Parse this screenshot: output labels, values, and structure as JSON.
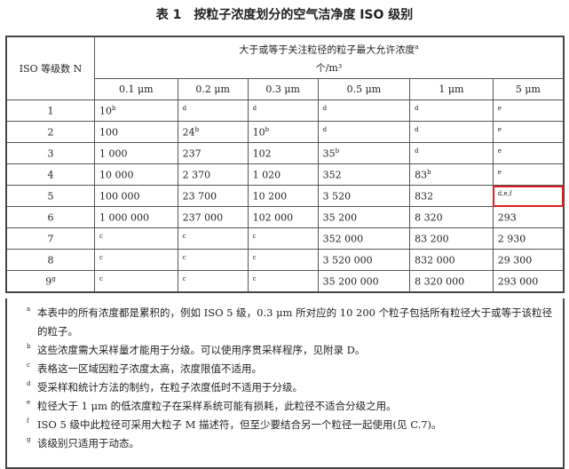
{
  "title": "表 1　按粒子浓度划分的空气洁净度 ISO 级别",
  "header": {
    "class_col": "ISO 等级数 N",
    "concentration": "大于或等于关注粒径的粒子最大允许浓度",
    "concentration_sup": "a",
    "unit": "个/m³",
    "sizes": [
      "0.1 μm",
      "0.2 μm",
      "0.3 μm",
      "0.5 μm",
      "1 μm",
      "5 μm"
    ]
  },
  "rows": [
    {
      "n": "1",
      "ns": "",
      "cells": [
        [
          "10",
          "b"
        ],
        [
          "",
          "d"
        ],
        [
          "",
          "d"
        ],
        [
          "",
          "d"
        ],
        [
          "",
          "d"
        ],
        [
          "",
          "e"
        ]
      ]
    },
    {
      "n": "2",
      "ns": "",
      "cells": [
        [
          "100",
          ""
        ],
        [
          "24",
          "b"
        ],
        [
          "10",
          "b"
        ],
        [
          "",
          "d"
        ],
        [
          "",
          "d"
        ],
        [
          "",
          "e"
        ]
      ]
    },
    {
      "n": "3",
      "ns": "",
      "cells": [
        [
          "1 000",
          ""
        ],
        [
          "237",
          ""
        ],
        [
          "102",
          ""
        ],
        [
          "35",
          "b"
        ],
        [
          "",
          "d"
        ],
        [
          "",
          "e"
        ]
      ]
    },
    {
      "n": "4",
      "ns": "",
      "cells": [
        [
          "10 000",
          ""
        ],
        [
          "2 370",
          ""
        ],
        [
          "1 020",
          ""
        ],
        [
          "352",
          ""
        ],
        [
          "83",
          "b"
        ],
        [
          "",
          "e"
        ]
      ]
    },
    {
      "n": "5",
      "ns": "",
      "cells": [
        [
          "100 000",
          ""
        ],
        [
          "23 700",
          ""
        ],
        [
          "10 200",
          ""
        ],
        [
          "3 520",
          ""
        ],
        [
          "832",
          ""
        ],
        [
          "",
          "d,e,f"
        ]
      ]
    },
    {
      "n": "6",
      "ns": "",
      "cells": [
        [
          "1 000 000",
          ""
        ],
        [
          "237 000",
          ""
        ],
        [
          "102 000",
          ""
        ],
        [
          "35 200",
          ""
        ],
        [
          "8 320",
          ""
        ],
        [
          "293",
          ""
        ]
      ]
    },
    {
      "n": "7",
      "ns": "",
      "cells": [
        [
          "",
          "c"
        ],
        [
          "",
          "c"
        ],
        [
          "",
          "c"
        ],
        [
          "352 000",
          ""
        ],
        [
          "83 200",
          ""
        ],
        [
          "2 930",
          ""
        ]
      ]
    },
    {
      "n": "8",
      "ns": "",
      "cells": [
        [
          "",
          "c"
        ],
        [
          "",
          "c"
        ],
        [
          "",
          "c"
        ],
        [
          "3 520 000",
          ""
        ],
        [
          "832 000",
          ""
        ],
        [
          "29 300",
          ""
        ]
      ]
    },
    {
      "n": "9",
      "ns": "g",
      "cells": [
        [
          "",
          "c"
        ],
        [
          "",
          "c"
        ],
        [
          "",
          "c"
        ],
        [
          "35 200 000",
          ""
        ],
        [
          "8 320 000",
          ""
        ],
        [
          "293 000",
          ""
        ]
      ]
    }
  ],
  "highlight_color": "#e02020",
  "notes": [
    {
      "m": "a",
      "t": "本表中的所有浓度都是累积的，例如 ISO 5 级，0.3 μm 所对应的 10 200 个粒子包括所有粒径大于或等于该粒径的粒子。"
    },
    {
      "m": "b",
      "t": "这些浓度需大采样量才能用于分级。可以使用序贯采样程序，见附录 D。"
    },
    {
      "m": "c",
      "t": "表格这一区域因粒子浓度太高，浓度限值不适用。"
    },
    {
      "m": "d",
      "t": "受采样和统计方法的制约，在粒子浓度低时不适用于分级。"
    },
    {
      "m": "e",
      "t": "粒径大于 1 μm 的低浓度粒子在采样系统可能有损耗，此粒径不适合分级之用。"
    },
    {
      "m": "f",
      "t": "ISO 5 级中此粒径可采用大粒子 M 描述符，但至少要结合另一个粒径一起使用(见 C.7)。"
    },
    {
      "m": "g",
      "t": "该级别只适用于动态。"
    }
  ]
}
